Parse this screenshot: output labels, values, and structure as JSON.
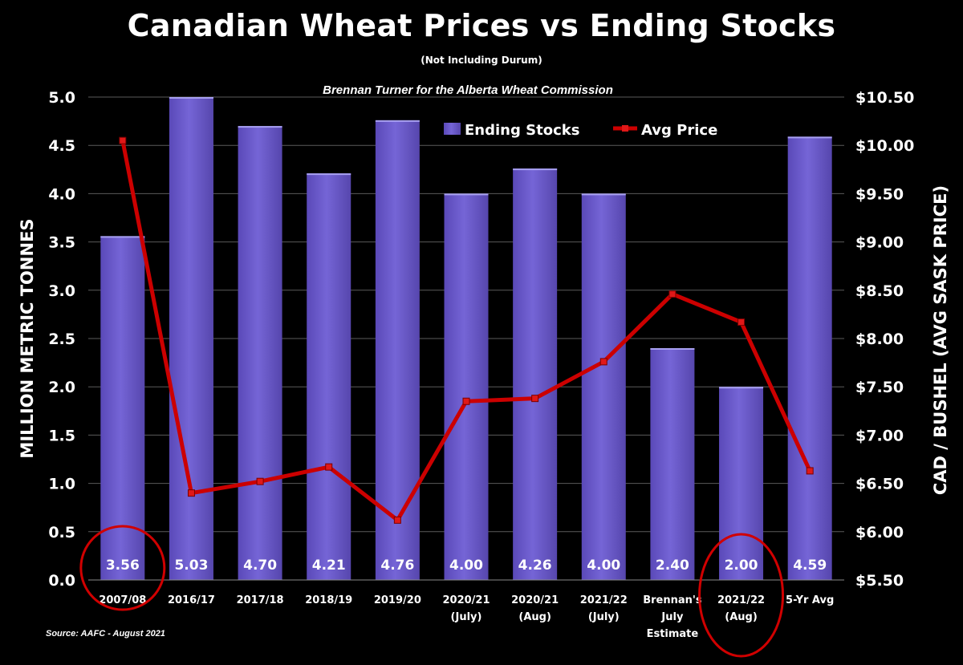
{
  "chart_data": {
    "type": "bar",
    "title": "Canadian Wheat Prices vs Ending Stocks",
    "subtitle": "(Not Including Durum)",
    "annotation": "Brennan Turner for the Alberta Wheat Commission",
    "source": "Source: AAFC - August 2021",
    "ylabel": "MILLION METRIC TONNES",
    "y2label": "CAD / BUSHEL (AVG SASK PRICE)",
    "ylim": [
      0,
      5.0
    ],
    "y2lim": [
      5.5,
      10.5
    ],
    "yticks": [
      "0.0",
      "0.5",
      "1.0",
      "1.5",
      "2.0",
      "2.5",
      "3.0",
      "3.5",
      "4.0",
      "4.5",
      "5.0"
    ],
    "y2ticks": [
      "$5.50",
      "$6.00",
      "$6.50",
      "$7.00",
      "$7.50",
      "$8.00",
      "$8.50",
      "$9.00",
      "$9.50",
      "$10.00",
      "$10.50"
    ],
    "grid": true,
    "legend_position": "top-center",
    "categories": [
      [
        "2007/08"
      ],
      [
        "2016/17"
      ],
      [
        "2017/18"
      ],
      [
        "2018/19"
      ],
      [
        "2019/20"
      ],
      [
        "2020/21",
        "(July)"
      ],
      [
        "2020/21",
        "(Aug)"
      ],
      [
        "2021/22",
        "(July)"
      ],
      [
        "Brennan's",
        "July",
        "Estimate"
      ],
      [
        "2021/22",
        "(Aug)"
      ],
      [
        "5-Yr Avg"
      ]
    ],
    "series": [
      {
        "name": "Ending Stocks",
        "type": "bar",
        "axis": "left",
        "color": "#6a5acd",
        "values": [
          3.56,
          5.03,
          4.7,
          4.21,
          4.76,
          4.0,
          4.26,
          4.0,
          2.4,
          2.0,
          4.59
        ],
        "labels": [
          "3.56",
          "5.03",
          "4.70",
          "4.21",
          "4.76",
          "4.00",
          "4.26",
          "4.00",
          "2.40",
          "2.00",
          "4.59"
        ]
      },
      {
        "name": "Avg Price",
        "type": "line",
        "axis": "right",
        "color": "#cc0000",
        "values": [
          10.05,
          6.4,
          6.52,
          6.67,
          6.12,
          7.35,
          7.38,
          7.76,
          8.46,
          8.17,
          6.63
        ]
      }
    ],
    "highlighted_categories": [
      "2007/08",
      "2021/22 (Aug)"
    ],
    "highlight_color": "#d00000"
  }
}
